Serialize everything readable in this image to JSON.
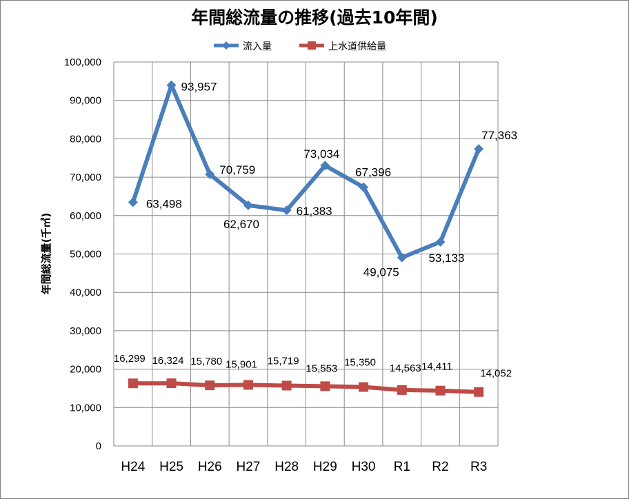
{
  "chart_data": {
    "type": "line",
    "title": "年間総流量の推移(過去10年間)",
    "ylabel": "年間総流量(千㎥)",
    "xlabel": "",
    "categories": [
      "H24",
      "H25",
      "H26",
      "H27",
      "H28",
      "H29",
      "H30",
      "R1",
      "R2",
      "R3"
    ],
    "ylim": [
      0,
      100000
    ],
    "yticks": [
      0,
      10000,
      20000,
      30000,
      40000,
      50000,
      60000,
      70000,
      80000,
      90000,
      100000
    ],
    "ytick_labels": [
      "0",
      "10,000",
      "20,000",
      "30,000",
      "40,000",
      "50,000",
      "60,000",
      "70,000",
      "80,000",
      "90,000",
      "100,000"
    ],
    "grid": true,
    "legend_position": "top",
    "series": [
      {
        "name": "流入量",
        "color": "#4a7ebb",
        "marker": "diamond",
        "values": [
          63498,
          93957,
          70759,
          62670,
          61383,
          73034,
          67396,
          49075,
          53133,
          77363
        ],
        "labels": [
          "63,498",
          "93,957",
          "70,759",
          "62,670",
          "61,383",
          "73,034",
          "67,396",
          "49,075",
          "53,133",
          "77,363"
        ]
      },
      {
        "name": "上水道供給量",
        "color": "#be4b48",
        "marker": "square",
        "values": [
          16299,
          16324,
          15780,
          15901,
          15719,
          15553,
          15350,
          14563,
          14411,
          14052
        ],
        "labels": [
          "16,299",
          "16,324",
          "15,780",
          "15,901",
          "15,719",
          "15,553",
          "15,350",
          "14,563",
          "14,411",
          "14,052"
        ]
      }
    ]
  }
}
